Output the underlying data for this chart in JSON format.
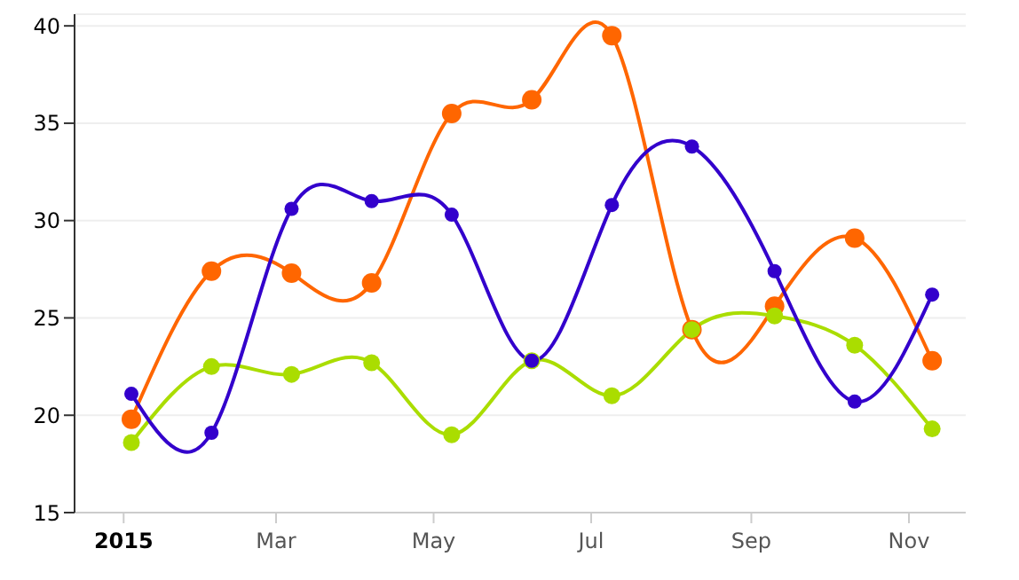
{
  "chart_data": {
    "type": "line",
    "x": [
      "2015-01-04",
      "2015-02-04",
      "2015-03-07",
      "2015-04-07",
      "2015-05-08",
      "2015-06-08",
      "2015-07-09",
      "2015-08-09",
      "2015-09-10",
      "2015-10-11",
      "2015-11-10"
    ],
    "series": [
      {
        "color": "#ff6600",
        "values": [
          19.8,
          27.4,
          27.3,
          26.8,
          35.5,
          36.2,
          39.5,
          24.4,
          25.6,
          29.1,
          22.8
        ]
      },
      {
        "color": "#aadd00",
        "values": [
          18.6,
          22.5,
          22.1,
          22.7,
          19.0,
          22.8,
          21.0,
          24.4,
          25.1,
          23.6,
          19.3
        ]
      },
      {
        "color": "#3300cc",
        "values": [
          21.1,
          19.1,
          30.6,
          31.0,
          30.3,
          22.8,
          30.8,
          33.8,
          27.4,
          20.7,
          26.2
        ]
      }
    ],
    "xlim": [
      "2014-12-13",
      "2015-11-23"
    ],
    "xticks": [
      {
        "value": "2015-01-01",
        "label": "2015"
      },
      {
        "value": "2015-03-01",
        "label": "Mar"
      },
      {
        "value": "2015-05-01",
        "label": "May"
      },
      {
        "value": "2015-07-01",
        "label": "Jul"
      },
      {
        "value": "2015-09-01",
        "label": "Sep"
      },
      {
        "value": "2015-11-01",
        "label": "Nov"
      }
    ],
    "ylim": [
      15,
      40.6
    ],
    "yticks": [
      15,
      20,
      25,
      30,
      35,
      40
    ],
    "grid": "y",
    "marker": "circle",
    "line_style": "solid"
  }
}
